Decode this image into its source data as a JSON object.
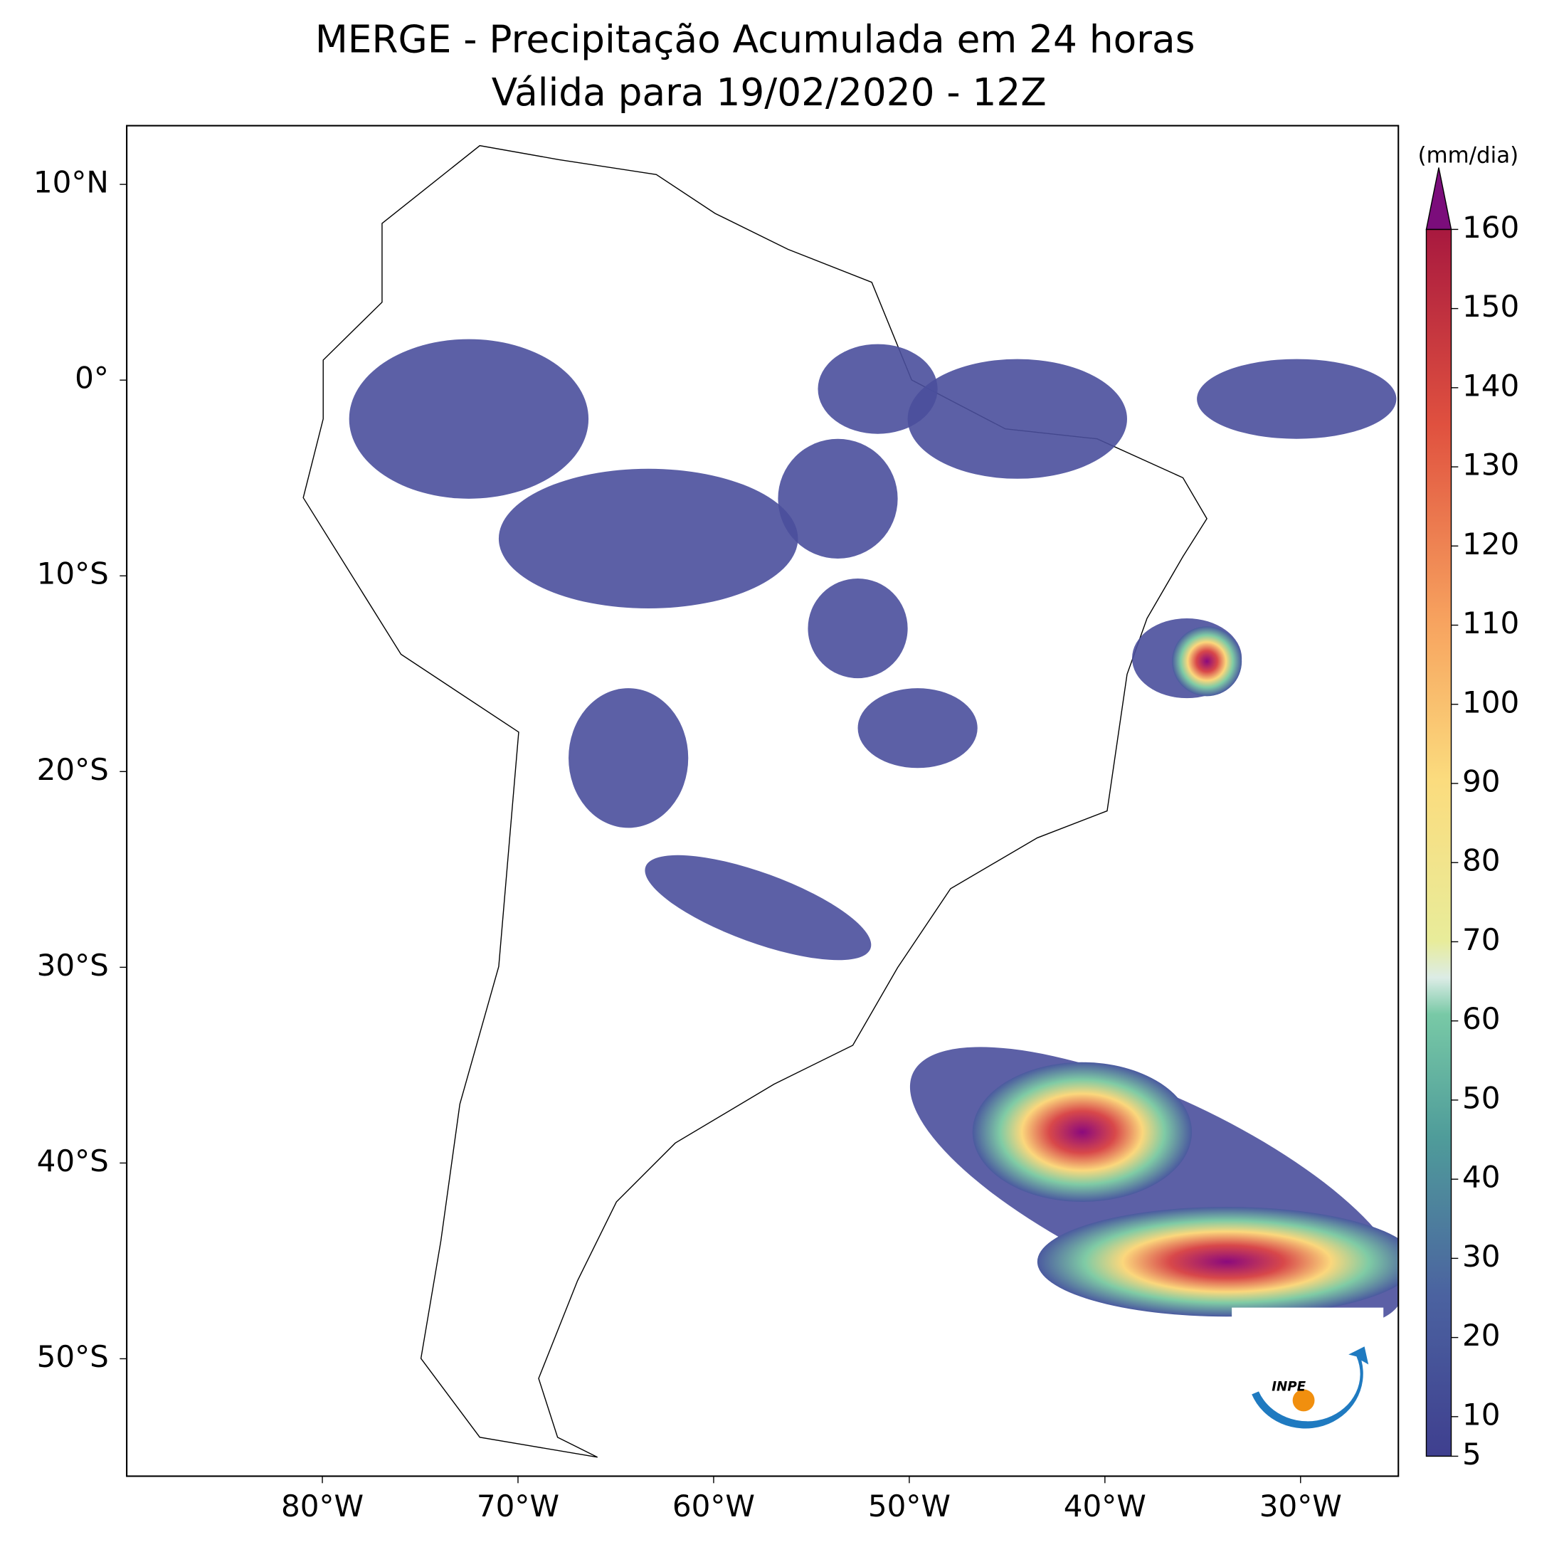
{
  "title": "MERGE - Precipitação Acumulada em 24 horas",
  "subtitle": "Válida para 19/02/2020 - 12Z",
  "map": {
    "lonlim": [
      -90,
      -25
    ],
    "latlim": [
      -56,
      13
    ],
    "lon_ticks": [
      {
        "value": -80,
        "label": "80°W"
      },
      {
        "value": -70,
        "label": "70°W"
      },
      {
        "value": -60,
        "label": "60°W"
      },
      {
        "value": -50,
        "label": "50°W"
      },
      {
        "value": -40,
        "label": "40°W"
      },
      {
        "value": -30,
        "label": "30°W"
      }
    ],
    "lat_ticks": [
      {
        "value": 10,
        "label": "10°N"
      },
      {
        "value": 0,
        "label": "0°"
      },
      {
        "value": -10,
        "label": "10°S"
      },
      {
        "value": -20,
        "label": "20°S"
      },
      {
        "value": -30,
        "label": "30°S"
      },
      {
        "value": -40,
        "label": "40°S"
      },
      {
        "value": -50,
        "label": "50°S"
      }
    ]
  },
  "colorbar": {
    "unit": "(mm/dia)",
    "lim": [
      5,
      160
    ],
    "ticks": [
      5,
      10,
      20,
      30,
      40,
      50,
      60,
      70,
      80,
      90,
      100,
      110,
      120,
      130,
      140,
      150,
      160
    ]
  },
  "logo": "INPE"
}
